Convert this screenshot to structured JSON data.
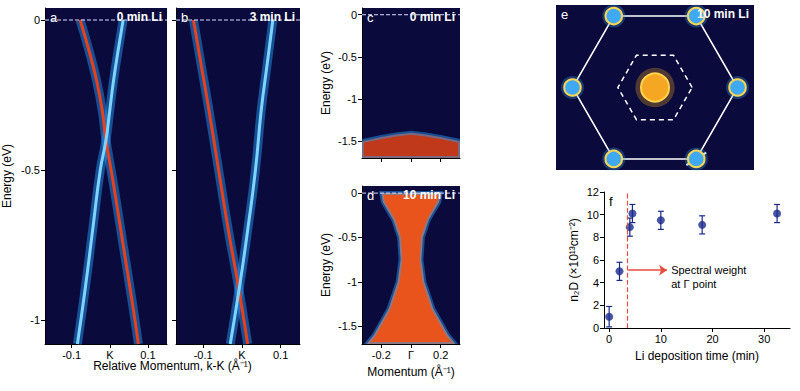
{
  "chart_data": [
    {
      "type": "spectrum",
      "title": "a",
      "subtitle": "0 min Li",
      "xlabel": "Relative Momentum, k-K (Å⁻¹)",
      "ylabel": "Energy (eV)",
      "xlim": [
        -0.17,
        0.15
      ],
      "ylim": [
        -1.08,
        0.04
      ],
      "xticks": [
        -0.1,
        {
          "value": 0,
          "label": "K"
        },
        0.1
      ],
      "yticks": [
        0,
        -0.5,
        -1
      ],
      "fermi_level": 0,
      "series": [
        {
          "type": "line",
          "color": "#e8401c",
          "x": [
            -0.078,
            -0.055,
            -0.035,
            -0.02,
            -0.01,
            0.01,
            0.035,
            0.06,
            0.075
          ],
          "values": [
            0,
            -0.1,
            -0.2,
            -0.3,
            -0.4,
            -0.55,
            -0.75,
            -0.95,
            -1.08
          ]
        },
        {
          "type": "line",
          "color": "#7fd3ff",
          "x": [
            0.035,
            0.022,
            0.01,
            0,
            -0.01,
            -0.025,
            -0.045,
            -0.065,
            -0.085
          ],
          "values": [
            0,
            -0.1,
            -0.2,
            -0.3,
            -0.4,
            -0.5,
            -0.7,
            -0.9,
            -1.08
          ]
        }
      ]
    },
    {
      "type": "spectrum",
      "title": "b",
      "subtitle": "3 min Li",
      "xlim": [
        -0.17,
        0.15
      ],
      "ylim": [
        -1.08,
        0.04
      ],
      "xticks": [
        -0.1,
        {
          "value": 0,
          "label": "K"
        },
        0.1
      ],
      "yticks": [
        0,
        -0.5,
        -1
      ],
      "tick_labels": "x",
      "fermi_level": 0,
      "series": [
        {
          "type": "line",
          "color": "#e8401c",
          "x": [
            -0.125,
            -0.105,
            -0.085,
            -0.06,
            -0.035,
            -0.01,
            0.015
          ],
          "values": [
            0,
            -0.15,
            -0.3,
            -0.5,
            -0.7,
            -0.88,
            -1.08
          ]
        },
        {
          "type": "line",
          "color": "#7fd3ff",
          "x": [
            0.08,
            0.065,
            0.05,
            0.035,
            0.015,
            -0.005,
            -0.03
          ],
          "values": [
            0,
            -0.15,
            -0.3,
            -0.5,
            -0.7,
            -0.88,
            -1.08
          ]
        }
      ]
    },
    {
      "type": "spectrum",
      "title": "c",
      "subtitle": "0 min Li",
      "ylabel": "Energy (eV)",
      "xlim": [
        -0.33,
        0.33
      ],
      "ylim": [
        -1.7,
        0.08
      ],
      "xticks": [
        -0.2,
        {
          "value": 0,
          "label": "Γ"
        },
        0.2
      ],
      "yticks": [
        0,
        -0.5,
        -1,
        -1.5
      ],
      "tick_labels": "y",
      "fermi_level": 0,
      "series": [
        {
          "type": "area",
          "color": "#c0391a",
          "x": [
            -0.33,
            -0.2,
            -0.1,
            0,
            0.1,
            0.2,
            0.33,
            0.33,
            -0.33
          ],
          "values": [
            -1.5,
            -1.45,
            -1.42,
            -1.4,
            -1.42,
            -1.45,
            -1.5,
            -1.7,
            -1.7
          ]
        }
      ]
    },
    {
      "type": "spectrum",
      "title": "d",
      "subtitle": "10 min Li",
      "xlabel": "Momentum (Å⁻¹)",
      "ylabel": "Energy (eV)",
      "xlim": [
        -0.33,
        0.33
      ],
      "ylim": [
        -1.7,
        0.08
      ],
      "xticks": [
        -0.2,
        {
          "value": 0,
          "label": "Γ"
        },
        0.2
      ],
      "yticks": [
        0,
        -0.5,
        -1,
        -1.5
      ],
      "fermi_level": 0,
      "series": [
        {
          "type": "area",
          "color": "#e8541c",
          "x": [
            -0.2,
            0.2,
            0.19,
            0.12,
            0.08,
            0.07,
            0.09,
            0.15,
            0.25,
            0.3,
            -0.3,
            -0.25,
            -0.15,
            -0.09,
            -0.07,
            -0.08,
            -0.12,
            -0.19
          ],
          "values": [
            0,
            0,
            -0.1,
            -0.3,
            -0.5,
            -0.75,
            -1.0,
            -1.3,
            -1.6,
            -1.7,
            -1.7,
            -1.6,
            -1.3,
            -1.0,
            -0.75,
            -0.5,
            -0.3,
            -0.1
          ]
        }
      ]
    },
    {
      "type": "fermi_surface",
      "title": "e",
      "subtitle": "10 min Li",
      "xlim": [
        -1.2,
        1.2
      ],
      "ylim": [
        -1.0,
        1.0
      ],
      "tick_labels": false,
      "series": [
        {
          "type": "outline",
          "color": "#ffffff",
          "line_style": "solid",
          "x": [
            1,
            0.5,
            -0.5,
            -1,
            -0.5,
            0.5
          ],
          "values": [
            0,
            0.866,
            0.866,
            0,
            -0.866,
            -0.866
          ]
        },
        {
          "type": "outline",
          "color": "#ffffff",
          "line_style": "dashed",
          "x": [
            0.45,
            0.225,
            -0.225,
            -0.45,
            -0.225,
            0.225
          ],
          "values": [
            0,
            0.39,
            0.39,
            0,
            -0.39,
            -0.39
          ]
        },
        {
          "type": "pocket",
          "color": "#f5a623",
          "x": [
            0
          ],
          "values": [
            0
          ],
          "size": [
            0.17
          ]
        },
        {
          "type": "pocket",
          "color": "#3fa9f5",
          "x": [
            1,
            0.5,
            -0.5,
            -1,
            -0.5,
            0.5
          ],
          "values": [
            0,
            0.866,
            0.866,
            0,
            -0.866,
            -0.866
          ],
          "size": [
            0.1,
            0.1,
            0.1,
            0.1,
            0.1,
            0.1
          ]
        },
        {
          "type": "line",
          "color": "#ffffff",
          "x": [
            0.38,
            0.62
          ],
          "values": [
            -0.94,
            -0.79
          ]
        }
      ]
    },
    {
      "type": "scatter",
      "title": "f",
      "xlabel": "Li deposition time (min)",
      "ylabel": "n₂D (×10¹³cm⁻²)",
      "xlim": [
        -1,
        35
      ],
      "ylim": [
        0,
        12
      ],
      "xticks": [
        0,
        10,
        20,
        30
      ],
      "yticks": [
        0,
        2,
        4,
        6,
        8,
        10,
        12
      ],
      "grid": false,
      "series": [
        {
          "type": "scatter",
          "color": "#1a2a8c",
          "marker": "circle",
          "x": [
            0,
            2,
            4,
            4.5,
            10,
            18,
            32.5
          ],
          "values": [
            1.0,
            5.0,
            8.9,
            10.1,
            9.5,
            9.1,
            10.1
          ],
          "errors": [
            0.9,
            0.8,
            0.8,
            0.8,
            0.8,
            0.8,
            0.8
          ]
        }
      ],
      "vline": {
        "x": 3.5,
        "color": "#e74c3c",
        "line_style": "dashed"
      },
      "annotation": {
        "text": [
          "Spectral weight",
          "at Γ point"
        ],
        "x": 12,
        "y": 5.1,
        "arrow_x": [
          3.7,
          11.2
        ],
        "color": "#e74c3c"
      }
    }
  ]
}
